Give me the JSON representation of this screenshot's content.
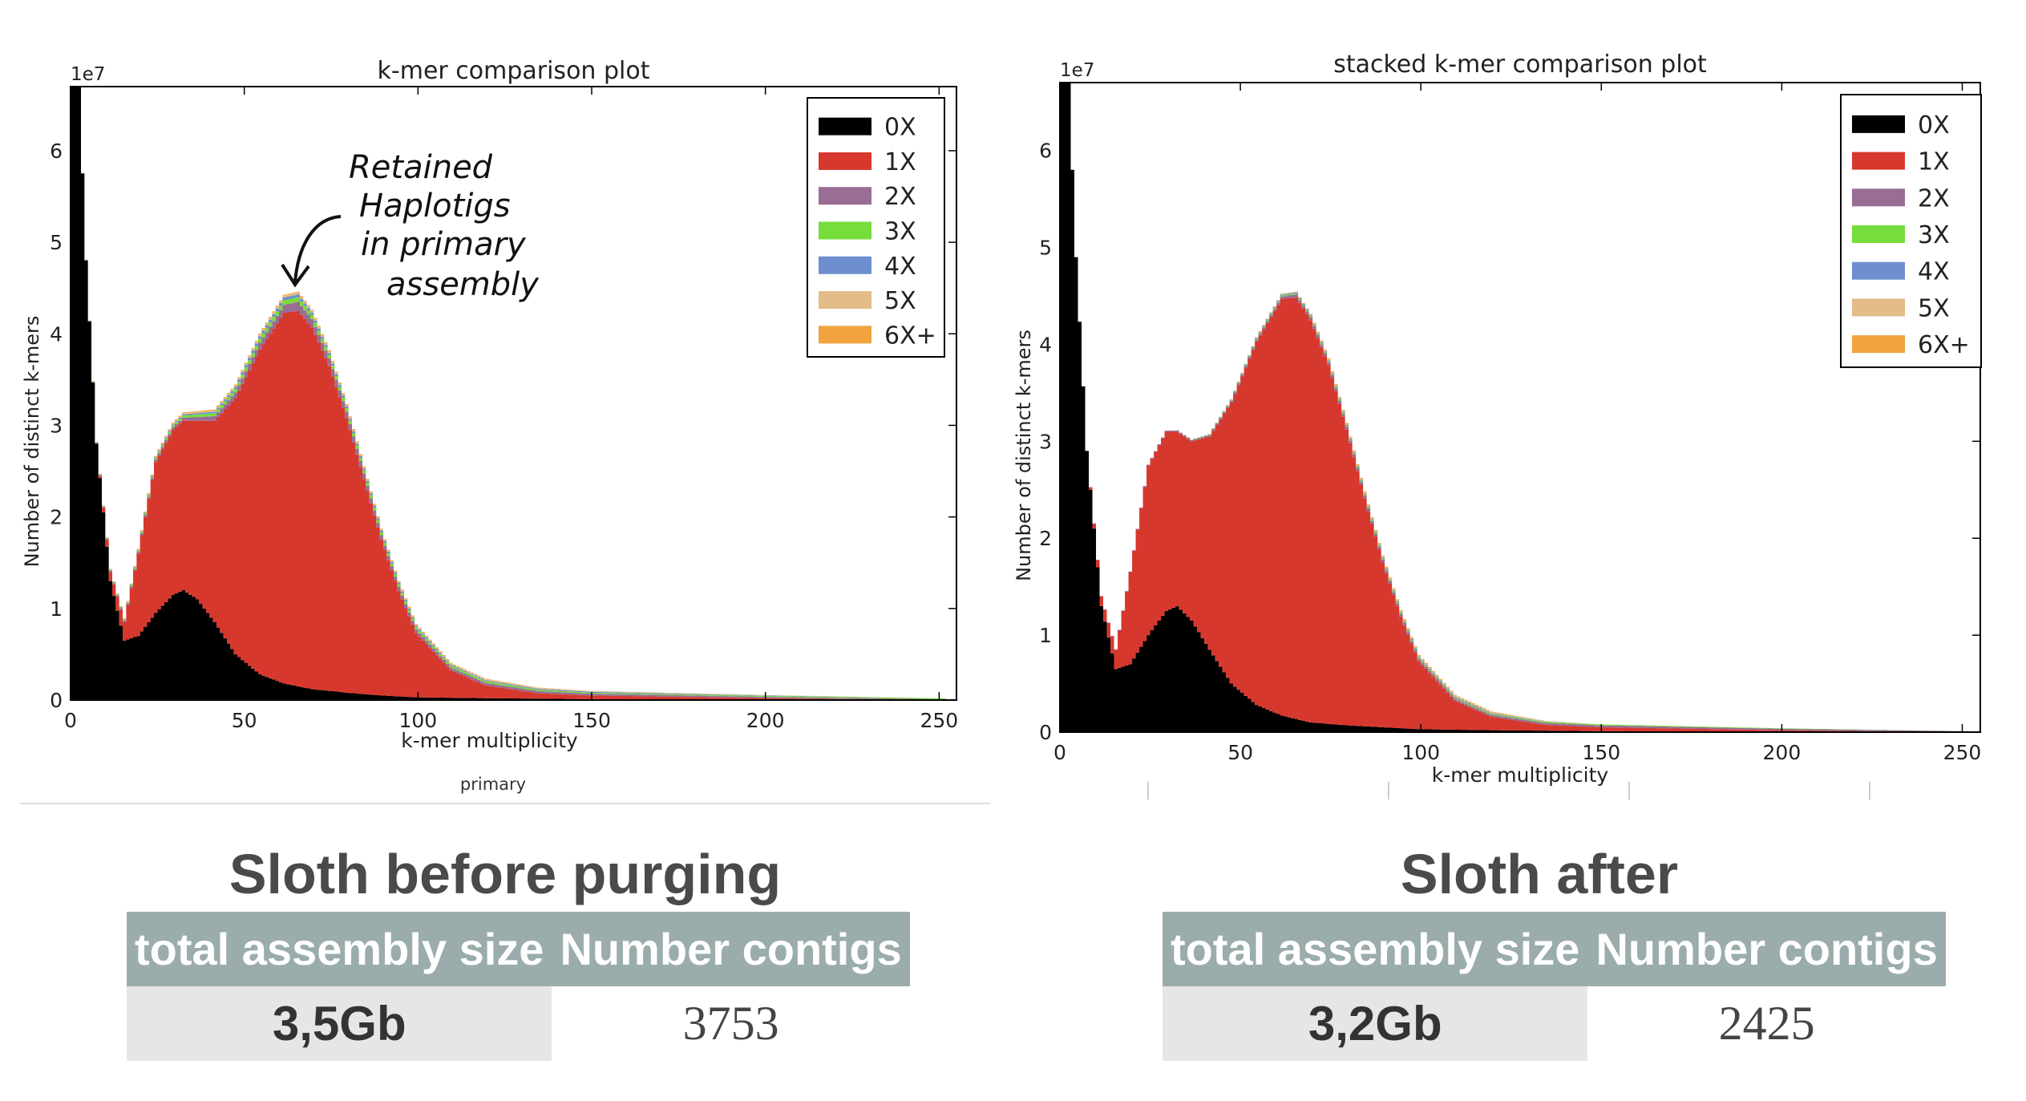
{
  "chart_data": [
    {
      "type": "area",
      "stacked": true,
      "title": "k-mer comparison plot",
      "xlabel": "k-mer multiplicity",
      "ylabel": "Number of distinct k-mers",
      "y_scale_label": "1e7",
      "caption": "primary",
      "xlim": [
        0,
        255
      ],
      "ylim": [
        0,
        6.7
      ],
      "x_ticks": [
        "0",
        "50",
        "100",
        "150",
        "200",
        "250"
      ],
      "y_ticks": [
        "0",
        "1",
        "2",
        "3",
        "4",
        "5",
        "6"
      ],
      "legend_position": "top-right",
      "legend": [
        "0X",
        "1X",
        "2X",
        "3X",
        "4X",
        "5X",
        "6X+"
      ],
      "colors": [
        "#000000",
        "#d7382e",
        "#9a6d95",
        "#77dd3c",
        "#6d8fcf",
        "#e3bc88",
        "#f0a33f"
      ],
      "series": [
        {
          "name": "0X",
          "x": [
            1,
            3,
            5,
            8,
            12,
            16,
            20,
            25,
            30,
            33,
            37,
            42,
            48,
            55,
            62,
            70,
            80,
            90,
            100,
            120,
            150,
            200,
            250
          ],
          "y": [
            6.7,
            6.7,
            4.8,
            2.8,
            1.3,
            0.65,
            0.7,
            0.95,
            1.15,
            1.2,
            1.1,
            0.85,
            0.5,
            0.28,
            0.18,
            0.12,
            0.08,
            0.05,
            0.03,
            0.02,
            0.01,
            0.0,
            0.0
          ]
        },
        {
          "name": "1X",
          "x": [
            1,
            3,
            5,
            8,
            12,
            16,
            20,
            25,
            30,
            33,
            37,
            42,
            48,
            55,
            62,
            66,
            70,
            75,
            80,
            85,
            90,
            95,
            100,
            110,
            120,
            135,
            150,
            200,
            250
          ],
          "y": [
            0.0,
            0.0,
            0.0,
            0.0,
            0.1,
            0.2,
            0.9,
            1.65,
            1.8,
            1.85,
            1.95,
            2.2,
            2.8,
            3.55,
            4.05,
            4.1,
            3.95,
            3.55,
            3.0,
            2.35,
            1.7,
            1.15,
            0.7,
            0.3,
            0.14,
            0.06,
            0.04,
            0.02,
            0.0
          ]
        },
        {
          "name": "2X",
          "x": [
            1,
            30,
            60,
            66,
            75,
            90,
            110,
            150,
            250
          ],
          "y": [
            0.0,
            0.03,
            0.08,
            0.1,
            0.08,
            0.05,
            0.03,
            0.02,
            0.01
          ]
        },
        {
          "name": "3X",
          "x": [
            1,
            30,
            60,
            66,
            75,
            90,
            110,
            150,
            250
          ],
          "y": [
            0.0,
            0.02,
            0.05,
            0.05,
            0.04,
            0.03,
            0.02,
            0.01,
            0.01
          ]
        },
        {
          "name": "4X",
          "x": [
            1,
            30,
            60,
            66,
            75,
            90,
            110,
            150,
            250
          ],
          "y": [
            0.0,
            0.01,
            0.03,
            0.03,
            0.02,
            0.02,
            0.01,
            0.01,
            0.0
          ]
        },
        {
          "name": "5X",
          "x": [
            1,
            30,
            60,
            66,
            75,
            90,
            110,
            150,
            250
          ],
          "y": [
            0.0,
            0.01,
            0.02,
            0.02,
            0.02,
            0.01,
            0.01,
            0.01,
            0.0
          ]
        },
        {
          "name": "6X+",
          "x": [
            1,
            30,
            60,
            66,
            75,
            90,
            110,
            150,
            250
          ],
          "y": [
            0.0,
            0.01,
            0.01,
            0.01,
            0.01,
            0.01,
            0.01,
            0.0,
            0.0
          ]
        }
      ],
      "annotation": "Retained Haplotigs in primary assembly"
    },
    {
      "type": "area",
      "stacked": true,
      "title": "stacked  k-mer comparison plot",
      "xlabel": "k-mer multiplicity",
      "ylabel": "Number of distinct k-mers",
      "y_scale_label": "1e7",
      "xlim": [
        0,
        255
      ],
      "ylim": [
        0,
        6.7
      ],
      "x_ticks": [
        "0",
        "50",
        "100",
        "150",
        "200",
        "250"
      ],
      "y_ticks": [
        "0",
        "1",
        "2",
        "3",
        "4",
        "5",
        "6"
      ],
      "legend_position": "top-right",
      "legend": [
        "0X",
        "1X",
        "2X",
        "3X",
        "4X",
        "5X",
        "6X+"
      ],
      "colors": [
        "#000000",
        "#d7382e",
        "#9a6d95",
        "#77dd3c",
        "#6d8fcf",
        "#e3bc88",
        "#f0a33f"
      ],
      "series": [
        {
          "name": "0X",
          "x": [
            1,
            3,
            5,
            8,
            12,
            16,
            20,
            25,
            30,
            33,
            37,
            42,
            48,
            55,
            62,
            70,
            80,
            90,
            100,
            120,
            150,
            200,
            250
          ],
          "y": [
            6.7,
            6.7,
            4.9,
            2.9,
            1.3,
            0.65,
            0.7,
            1.0,
            1.25,
            1.3,
            1.15,
            0.85,
            0.5,
            0.28,
            0.17,
            0.1,
            0.07,
            0.05,
            0.03,
            0.02,
            0.01,
            0.0,
            0.0
          ]
        },
        {
          "name": "1X",
          "x": [
            1,
            3,
            5,
            8,
            12,
            16,
            20,
            25,
            30,
            33,
            37,
            42,
            48,
            55,
            62,
            66,
            70,
            75,
            80,
            85,
            90,
            95,
            100,
            110,
            120,
            135,
            150,
            200,
            250
          ],
          "y": [
            0.0,
            0.0,
            0.0,
            0.0,
            0.1,
            0.2,
            0.95,
            1.75,
            1.85,
            1.8,
            1.85,
            2.2,
            2.9,
            3.75,
            4.3,
            4.35,
            4.15,
            3.7,
            3.05,
            2.35,
            1.7,
            1.15,
            0.7,
            0.3,
            0.14,
            0.06,
            0.04,
            0.02,
            0.0
          ]
        },
        {
          "name": "2X",
          "x": [
            1,
            30,
            60,
            66,
            75,
            90,
            110,
            150,
            250
          ],
          "y": [
            0.0,
            0.01,
            0.02,
            0.03,
            0.03,
            0.03,
            0.02,
            0.02,
            0.01
          ]
        },
        {
          "name": "3X",
          "x": [
            1,
            30,
            60,
            66,
            75,
            90,
            110,
            150,
            250
          ],
          "y": [
            0.0,
            0.0,
            0.01,
            0.01,
            0.01,
            0.01,
            0.01,
            0.01,
            0.0
          ]
        },
        {
          "name": "4X",
          "x": [
            1,
            30,
            60,
            66,
            75,
            90,
            110,
            150,
            250
          ],
          "y": [
            0.0,
            0.0,
            0.01,
            0.01,
            0.01,
            0.01,
            0.01,
            0.0,
            0.0
          ]
        },
        {
          "name": "5X",
          "x": [
            1,
            30,
            60,
            66,
            75,
            90,
            110,
            150,
            250
          ],
          "y": [
            0.0,
            0.0,
            0.01,
            0.01,
            0.01,
            0.01,
            0.01,
            0.0,
            0.0
          ]
        },
        {
          "name": "6X+",
          "x": [
            1,
            30,
            60,
            66,
            75,
            90,
            110,
            150,
            250
          ],
          "y": [
            0.0,
            0.0,
            0.0,
            0.0,
            0.01,
            0.01,
            0.01,
            0.0,
            0.0
          ]
        }
      ]
    }
  ],
  "before": {
    "title": "Sloth before purging",
    "headers": [
      "total assembly size",
      "Number contigs"
    ],
    "size": "3,5Gb",
    "contigs": "3753"
  },
  "after": {
    "title": "Sloth after",
    "headers": [
      "total assembly size",
      "Number contigs"
    ],
    "size": "3,2Gb",
    "contigs": "2425"
  }
}
